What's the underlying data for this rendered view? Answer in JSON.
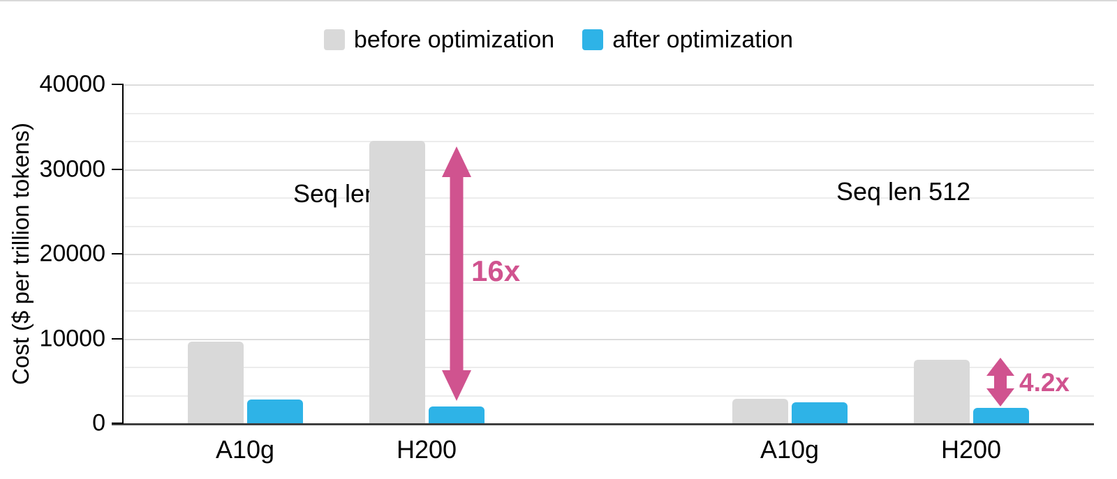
{
  "colors": {
    "before": "#d9d9d9",
    "after": "#2eb3e7",
    "accent_pink": "#d0538f",
    "gridline_minor": "#ececec",
    "gridline_major": "#dcdcdc",
    "baseline": "#3f3f3f"
  },
  "chart_data": {
    "type": "bar",
    "title": "",
    "ylabel": "Cost ($ per trillion tokens)",
    "xlabel": "",
    "ylim": [
      0,
      40000
    ],
    "yticks": [
      0,
      10000,
      20000,
      30000,
      40000
    ],
    "minor_gridlines_per_major": 3,
    "grid": true,
    "legend_position": "top-center",
    "legend": [
      {
        "label": "before optimization",
        "color": "#d9d9d9"
      },
      {
        "label": "after optimization",
        "color": "#2eb3e7"
      }
    ],
    "groups": [
      {
        "annotation": "Seq len 50",
        "categories": [
          {
            "label": "A10g",
            "before": 9600,
            "after": 2800
          },
          {
            "label": "H200",
            "before": 33300,
            "after": 2000
          }
        ]
      },
      {
        "annotation": "Seq len 512",
        "categories": [
          {
            "label": "A10g",
            "before": 2850,
            "after": 2450
          },
          {
            "label": "H200",
            "before": 7500,
            "after": 1800
          }
        ]
      }
    ],
    "annotations": [
      {
        "text": "16x",
        "color": "#d0538f",
        "target_group": "Seq len 50",
        "target_category": "H200"
      },
      {
        "text": "4.2x",
        "color": "#d0538f",
        "target_group": "Seq len 512",
        "target_category": "H200"
      }
    ]
  }
}
